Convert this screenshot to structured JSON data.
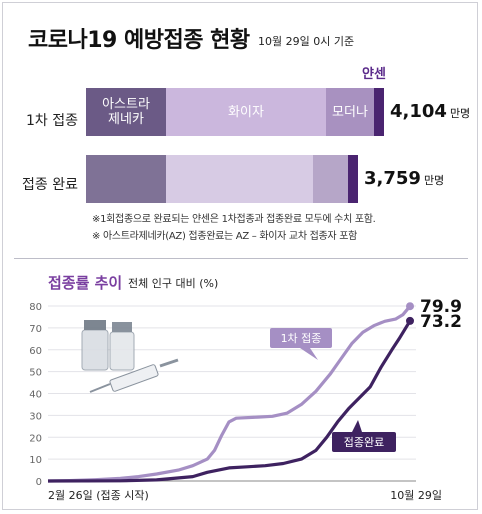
{
  "header": {
    "title": "코로나19 예방접종 현황",
    "date": "10월 29일 0시 기준"
  },
  "vaccination_bars": {
    "rows": [
      {
        "label": "1차 접종",
        "total": "4,104",
        "unit": "만명",
        "segments": [
          {
            "name": "아스트라 제네카",
            "line1": "아스트라",
            "line2": "제네카",
            "color": "#6b5a86"
          },
          {
            "name": "화이자",
            "line1": "화이자",
            "line2": "",
            "color": "#cbb7dd"
          },
          {
            "name": "모더나",
            "line1": "모더나",
            "line2": "",
            "color": "#a891c0"
          },
          {
            "name": "얀센",
            "line1": "",
            "line2": "",
            "color": "#4a2470"
          }
        ]
      },
      {
        "label": "접종 완료",
        "total": "3,759",
        "unit": "만명",
        "segments": [
          {
            "name": "아스트라 제네카",
            "color": "#7f7296"
          },
          {
            "name": "화이자",
            "color": "#d7cbe4"
          },
          {
            "name": "모더나",
            "color": "#b6a6c8"
          },
          {
            "name": "얀센",
            "color": "#4a2470"
          }
        ]
      }
    ],
    "janssen_label": "얀센",
    "notes": [
      "※1회접종으로 완료되는 얀센은 1차접종과 접종완료 모두에 수치 포함.",
      "※ 아스트라제네카(AZ) 접종완료는 AZ – 화이자 교차 접종자 포함"
    ]
  },
  "trend": {
    "title": "접종률 추이",
    "subtitle": "전체 인구 대비 (%)"
  },
  "chart_data": {
    "type": "line",
    "title": "접종률 추이",
    "subtitle": "전체 인구 대비 (%)",
    "ylim": [
      0,
      80
    ],
    "yticks": [
      "0",
      "10",
      "20",
      "30",
      "40",
      "50",
      "60",
      "70",
      "80"
    ],
    "x_start_label": "2월 26일 (접종 시작)",
    "x_end_label": "10월 29일",
    "grid": true,
    "series": [
      {
        "name": "1차 접종",
        "color": "#a58fc4",
        "end_label": "79.9",
        "points": [
          [
            0,
            0
          ],
          [
            0.06,
            0.2
          ],
          [
            0.13,
            0.6
          ],
          [
            0.2,
            1.2
          ],
          [
            0.25,
            2.0
          ],
          [
            0.3,
            3.2
          ],
          [
            0.36,
            5.0
          ],
          [
            0.4,
            7.0
          ],
          [
            0.44,
            10.0
          ],
          [
            0.46,
            14.0
          ],
          [
            0.48,
            21.0
          ],
          [
            0.5,
            27.0
          ],
          [
            0.52,
            28.7
          ],
          [
            0.58,
            29.2
          ],
          [
            0.62,
            29.6
          ],
          [
            0.66,
            31.0
          ],
          [
            0.7,
            35.0
          ],
          [
            0.74,
            41.0
          ],
          [
            0.78,
            49.0
          ],
          [
            0.81,
            56.0
          ],
          [
            0.84,
            63.0
          ],
          [
            0.87,
            68.0
          ],
          [
            0.9,
            71.0
          ],
          [
            0.93,
            73.0
          ],
          [
            0.96,
            74.0
          ],
          [
            0.98,
            76.0
          ],
          [
            1.0,
            79.9
          ]
        ]
      },
      {
        "name": "접종완료",
        "color": "#3e2260",
        "end_label": "73.2",
        "points": [
          [
            0,
            0
          ],
          [
            0.2,
            0.1
          ],
          [
            0.3,
            0.5
          ],
          [
            0.4,
            2.0
          ],
          [
            0.44,
            4.0
          ],
          [
            0.5,
            6.0
          ],
          [
            0.55,
            6.5
          ],
          [
            0.6,
            7.0
          ],
          [
            0.65,
            8.0
          ],
          [
            0.7,
            10.0
          ],
          [
            0.74,
            14.0
          ],
          [
            0.77,
            20.0
          ],
          [
            0.8,
            27.0
          ],
          [
            0.83,
            33.0
          ],
          [
            0.86,
            38.0
          ],
          [
            0.89,
            43.0
          ],
          [
            0.92,
            52.0
          ],
          [
            0.95,
            60.0
          ],
          [
            0.97,
            65.0
          ],
          [
            1.0,
            73.2
          ]
        ]
      }
    ]
  }
}
